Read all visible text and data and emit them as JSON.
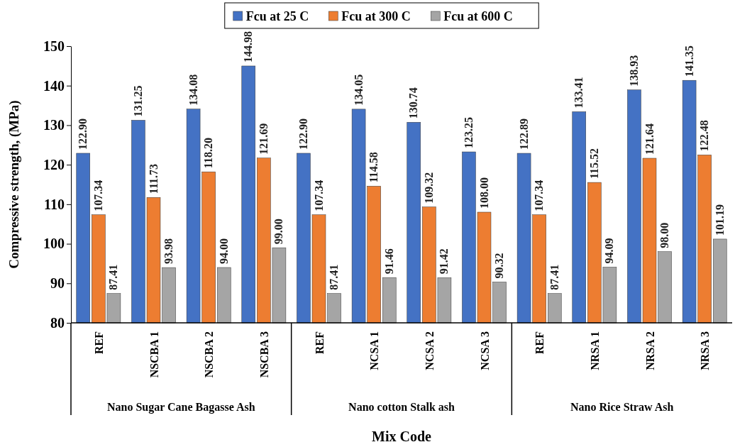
{
  "chart_data": {
    "type": "bar",
    "xlabel": "Mix Code",
    "ylabel": "Compressive strength, (MPa)",
    "categories": [
      "REF",
      "NSCBA 1",
      "NSCBA 2",
      "NSCBA 3",
      "REF",
      "NCSA 1",
      "NCSA 2",
      "NCSA 3",
      "REF",
      "NRSA 1",
      "NRSA 2",
      "NRSA 3"
    ],
    "series": [
      {
        "name": "Fcu at 25 C",
        "color": "#4472c4",
        "values": [
          122.9,
          131.25,
          134.08,
          144.98,
          122.9,
          134.05,
          130.74,
          123.25,
          122.89,
          133.41,
          138.93,
          141.35
        ],
        "value_labels": [
          "122.90",
          "131.25",
          "134.08",
          "144.98",
          "122.90",
          "134.05",
          "130.74",
          "123.25",
          "122.89",
          "133.41",
          "138.93",
          "141.35"
        ]
      },
      {
        "name": "Fcu at 300 C",
        "color": "#ed7d31",
        "values": [
          107.34,
          111.73,
          118.2,
          121.69,
          107.34,
          114.58,
          109.32,
          108.0,
          107.34,
          115.52,
          121.64,
          122.48
        ],
        "value_labels": [
          "107.34",
          "111.73",
          "118.20",
          "121.69",
          "107.34",
          "114.58",
          "109.32",
          "108.00",
          "107.34",
          "115.52",
          "121.64",
          "122.48"
        ]
      },
      {
        "name": "Fcu at 600 C",
        "color": "#a5a5a5",
        "values": [
          87.41,
          93.98,
          94.0,
          99.0,
          87.41,
          91.46,
          91.42,
          90.32,
          87.41,
          94.09,
          98.0,
          101.19
        ],
        "value_labels": [
          "87.41",
          "93.98",
          "94.00",
          "99.00",
          "87.41",
          "91.46",
          "91.42",
          "90.32",
          "87.41",
          "94.09",
          "98.00",
          "101.19"
        ]
      }
    ],
    "ylim": [
      80,
      150
    ],
    "yticks": [
      80,
      90,
      100,
      110,
      120,
      130,
      140,
      150
    ],
    "grid": false,
    "legend": "top",
    "annotations": [
      "Nano Sugar Cane Bagasse Ash",
      "Nano cotton Stalk ash",
      "Nano Rice Straw Ash"
    ]
  }
}
